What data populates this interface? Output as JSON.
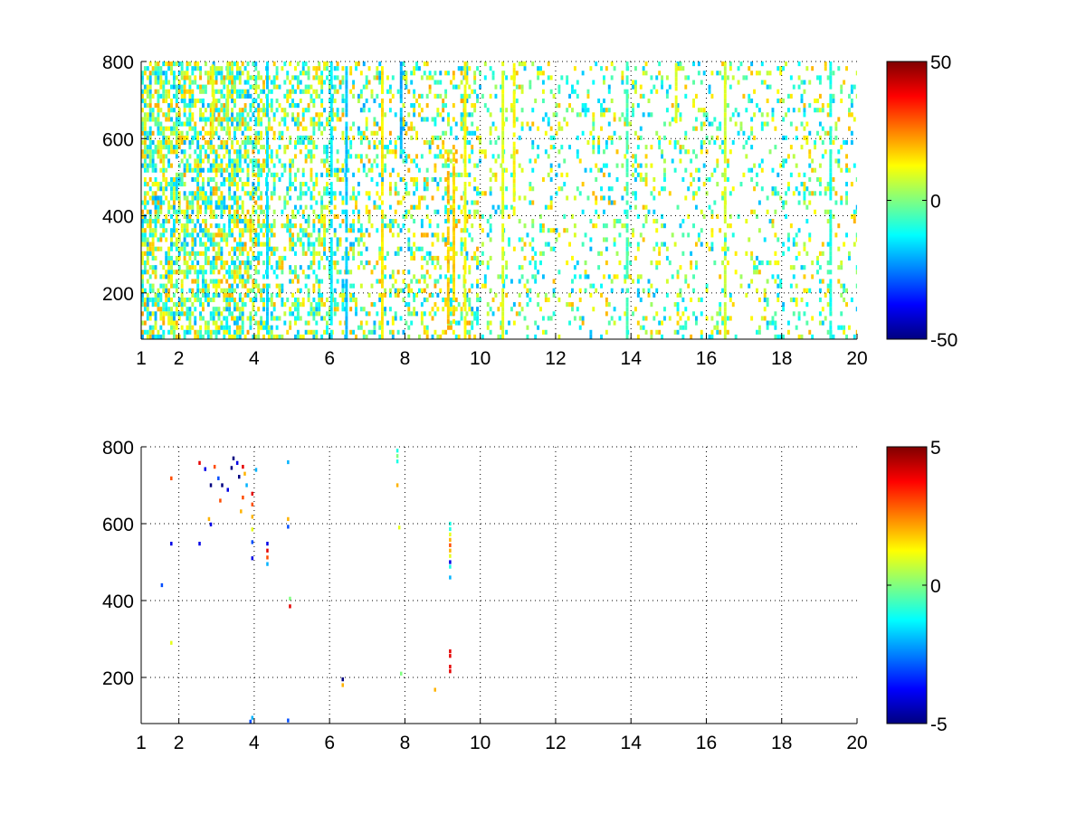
{
  "chart_data": [
    {
      "type": "heatmap",
      "title": "",
      "xlabel": "",
      "ylabel": "",
      "xlim": [
        1,
        20
      ],
      "ylim": [
        80,
        800
      ],
      "x_ticks": [
        1,
        2,
        4,
        6,
        8,
        10,
        12,
        14,
        16,
        18,
        20
      ],
      "y_ticks": [
        200,
        400,
        600,
        800
      ],
      "grid": true,
      "colormap": "jet",
      "color_limits": [
        -50,
        50
      ],
      "colorbar_ticks": [
        -50,
        0,
        50
      ],
      "cell_width": 0.07,
      "cell_height": 12,
      "values_note_random_seed": 1,
      "column_bands": [
        {
          "x0": 1.0,
          "x1": 4.1,
          "density": 0.65,
          "abs_max": 22
        },
        {
          "x0": 4.1,
          "x1": 6.0,
          "density": 0.42,
          "abs_max": 20
        },
        {
          "x0": 6.0,
          "x1": 10.0,
          "density": 0.3,
          "abs_max": 22
        },
        {
          "x0": 10.0,
          "x1": 20.0,
          "density": 0.18,
          "abs_max": 20
        }
      ],
      "strips": [
        {
          "x": 2.9,
          "y0": 600,
          "y1": 800,
          "value": 10
        },
        {
          "x": 3.3,
          "y0": 620,
          "y1": 800,
          "value": 8
        },
        {
          "x": 4.35,
          "y0": 80,
          "y1": 800,
          "value": -16
        },
        {
          "x": 6.05,
          "y0": 80,
          "y1": 800,
          "value": -14
        },
        {
          "x": 6.45,
          "y0": 80,
          "y1": 800,
          "value": -18
        },
        {
          "x": 7.4,
          "y0": 80,
          "y1": 800,
          "value": 14
        },
        {
          "x": 7.9,
          "y0": 560,
          "y1": 800,
          "value": -20
        },
        {
          "x": 9.15,
          "y0": 120,
          "y1": 560,
          "value": 18
        },
        {
          "x": 9.3,
          "y0": 120,
          "y1": 560,
          "value": 16
        },
        {
          "x": 9.6,
          "y0": 80,
          "y1": 800,
          "value": 12
        },
        {
          "x": 10.6,
          "y0": 80,
          "y1": 800,
          "value": 10
        },
        {
          "x": 10.9,
          "y0": 400,
          "y1": 800,
          "value": 12
        },
        {
          "x": 13.9,
          "y0": 80,
          "y1": 800,
          "value": -6
        },
        {
          "x": 15.2,
          "y0": 640,
          "y1": 800,
          "value": 10
        },
        {
          "x": 16.5,
          "y0": 80,
          "y1": 800,
          "value": 8
        },
        {
          "x": 19.3,
          "y0": 80,
          "y1": 800,
          "value": -10
        }
      ]
    },
    {
      "type": "heatmap",
      "title": "",
      "xlabel": "",
      "ylabel": "",
      "xlim": [
        1,
        20
      ],
      "ylim": [
        80,
        800
      ],
      "x_ticks": [
        1,
        2,
        4,
        6,
        8,
        10,
        12,
        14,
        16,
        18,
        20
      ],
      "y_ticks": [
        200,
        400,
        600,
        800
      ],
      "grid": true,
      "colormap": "jet",
      "color_limits": [
        -5,
        5
      ],
      "colorbar_ticks": [
        -5,
        0,
        5
      ],
      "cell_width": 0.06,
      "cell_height": 10,
      "cells": [
        {
          "x": 1.8,
          "y": 718,
          "value": 3
        },
        {
          "x": 1.8,
          "y": 548,
          "value": -4
        },
        {
          "x": 1.8,
          "y": 290,
          "value": 1
        },
        {
          "x": 1.55,
          "y": 440,
          "value": -3
        },
        {
          "x": 2.55,
          "y": 758,
          "value": 4
        },
        {
          "x": 2.55,
          "y": 548,
          "value": -4
        },
        {
          "x": 2.7,
          "y": 742,
          "value": -4
        },
        {
          "x": 2.8,
          "y": 612,
          "value": 2
        },
        {
          "x": 2.85,
          "y": 700,
          "value": -5
        },
        {
          "x": 2.85,
          "y": 598,
          "value": -4
        },
        {
          "x": 2.95,
          "y": 748,
          "value": 3
        },
        {
          "x": 3.05,
          "y": 718,
          "value": -3
        },
        {
          "x": 3.1,
          "y": 660,
          "value": 3
        },
        {
          "x": 3.15,
          "y": 700,
          "value": -5
        },
        {
          "x": 3.3,
          "y": 688,
          "value": -4
        },
        {
          "x": 3.4,
          "y": 745,
          "value": -5
        },
        {
          "x": 3.45,
          "y": 770,
          "value": -5
        },
        {
          "x": 3.55,
          "y": 758,
          "value": -4
        },
        {
          "x": 3.6,
          "y": 722,
          "value": -5
        },
        {
          "x": 3.7,
          "y": 748,
          "value": 4
        },
        {
          "x": 3.75,
          "y": 730,
          "value": 2
        },
        {
          "x": 3.8,
          "y": 700,
          "value": -2
        },
        {
          "x": 3.7,
          "y": 668,
          "value": 3
        },
        {
          "x": 3.65,
          "y": 632,
          "value": 2
        },
        {
          "x": 3.95,
          "y": 678,
          "value": 4
        },
        {
          "x": 3.95,
          "y": 650,
          "value": 3
        },
        {
          "x": 3.95,
          "y": 618,
          "value": 2
        },
        {
          "x": 3.95,
          "y": 585,
          "value": 1
        },
        {
          "x": 3.95,
          "y": 552,
          "value": -3
        },
        {
          "x": 3.95,
          "y": 510,
          "value": -4
        },
        {
          "x": 3.95,
          "y": 95,
          "value": -2
        },
        {
          "x": 3.9,
          "y": 85,
          "value": -3
        },
        {
          "x": 4.05,
          "y": 740,
          "value": -2
        },
        {
          "x": 4.35,
          "y": 548,
          "value": -4
        },
        {
          "x": 4.35,
          "y": 530,
          "value": 4
        },
        {
          "x": 4.35,
          "y": 512,
          "value": 3
        },
        {
          "x": 4.35,
          "y": 495,
          "value": -2
        },
        {
          "x": 4.9,
          "y": 760,
          "value": -2
        },
        {
          "x": 4.9,
          "y": 612,
          "value": 2
        },
        {
          "x": 4.9,
          "y": 592,
          "value": -3
        },
        {
          "x": 4.95,
          "y": 405,
          "value": 0
        },
        {
          "x": 4.95,
          "y": 385,
          "value": 4
        },
        {
          "x": 4.9,
          "y": 88,
          "value": -3
        },
        {
          "x": 6.35,
          "y": 195,
          "value": -5
        },
        {
          "x": 6.35,
          "y": 180,
          "value": 2
        },
        {
          "x": 7.8,
          "y": 790,
          "value": -1
        },
        {
          "x": 7.8,
          "y": 776,
          "value": 0
        },
        {
          "x": 7.8,
          "y": 762,
          "value": -1
        },
        {
          "x": 7.8,
          "y": 700,
          "value": 2
        },
        {
          "x": 7.85,
          "y": 590,
          "value": 1
        },
        {
          "x": 7.9,
          "y": 210,
          "value": 0
        },
        {
          "x": 8.8,
          "y": 168,
          "value": 2
        },
        {
          "x": 9.2,
          "y": 600,
          "value": -1
        },
        {
          "x": 9.2,
          "y": 586,
          "value": -1
        },
        {
          "x": 9.2,
          "y": 572,
          "value": 1
        },
        {
          "x": 9.2,
          "y": 558,
          "value": 2
        },
        {
          "x": 9.2,
          "y": 544,
          "value": 3
        },
        {
          "x": 9.2,
          "y": 530,
          "value": 2
        },
        {
          "x": 9.2,
          "y": 516,
          "value": 1
        },
        {
          "x": 9.2,
          "y": 500,
          "value": -4
        },
        {
          "x": 9.2,
          "y": 488,
          "value": -1
        },
        {
          "x": 9.2,
          "y": 460,
          "value": -2
        },
        {
          "x": 9.2,
          "y": 268,
          "value": 4
        },
        {
          "x": 9.2,
          "y": 256,
          "value": 4
        },
        {
          "x": 9.2,
          "y": 228,
          "value": 4
        },
        {
          "x": 9.2,
          "y": 216,
          "value": 4
        }
      ]
    }
  ]
}
